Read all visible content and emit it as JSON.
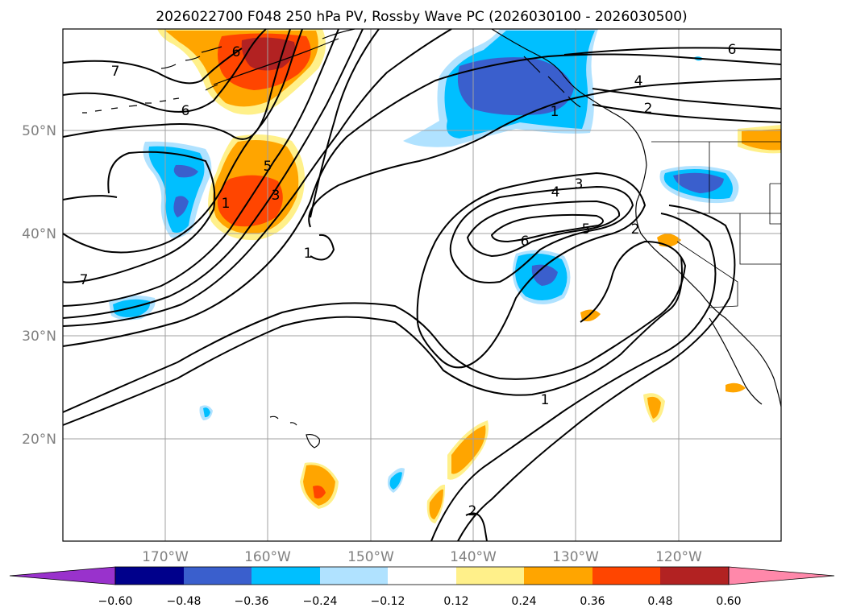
{
  "title": "2026022700 F048 250 hPa PV, Rossby Wave PC (2026030100 - 2026030500)",
  "lat_labels": [
    "50°N",
    "40°N",
    "30°N",
    "20°N"
  ],
  "lon_labels": [
    "170°W",
    "160°W",
    "150°W",
    "140°W",
    "130°W",
    "120°W"
  ],
  "colorbar": {
    "ticks": [
      "−0.60",
      "−0.48",
      "−0.36",
      "−0.24",
      "−0.12",
      "0.12",
      "0.24",
      "0.36",
      "0.48",
      "0.60"
    ],
    "colors": [
      "#9932cc",
      "#00008b",
      "#3a5fcd",
      "#00bfff",
      "#b0e2ff",
      "#ffffff",
      "#fff08a",
      "#ffa500",
      "#ff4500",
      "#b22222",
      "#ff88aa"
    ]
  },
  "contour_labels": [
    "7",
    "6",
    "6",
    "5",
    "3",
    "1",
    "1",
    "7",
    "6",
    "4",
    "2",
    "1",
    "3",
    "4",
    "5",
    "6",
    "2",
    "1",
    "2"
  ]
}
